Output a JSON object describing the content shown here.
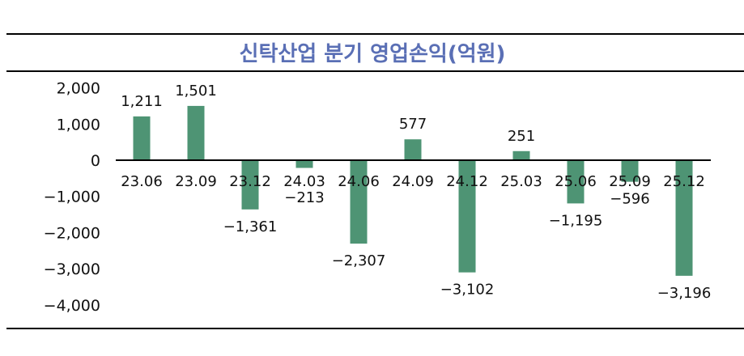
{
  "chart_data": {
    "type": "bar",
    "title": "신탁산업 분기 영업손익(억원)",
    "xlabel": "",
    "ylabel": "",
    "categories": [
      "23.06",
      "23.09",
      "23.12",
      "24.03",
      "24.06",
      "24.09",
      "24.12",
      "25.03",
      "25.06",
      "25.09",
      "25.12"
    ],
    "values": [
      1211,
      1501,
      -1361,
      -213,
      -2307,
      577,
      -3102,
      251,
      -1195,
      -596,
      -3196
    ],
    "data_labels": [
      "1,211",
      "1,501",
      "−1,361",
      "−213",
      "−2,307",
      "577",
      "−3,102",
      "251",
      "−1,195",
      "−596",
      "−3,196"
    ],
    "ylim": [
      -4000,
      2000
    ],
    "yticks": [
      2000,
      1000,
      0,
      -1000,
      -2000,
      -3000,
      -4000
    ],
    "ytick_labels": [
      "2,000",
      "1,000",
      "0",
      "−1,000",
      "−2,000",
      "−3,000",
      "−4,000"
    ],
    "grid": false,
    "legend": "none",
    "colors": {
      "bar": "#4e9474",
      "title": "#5a6fb5"
    }
  }
}
